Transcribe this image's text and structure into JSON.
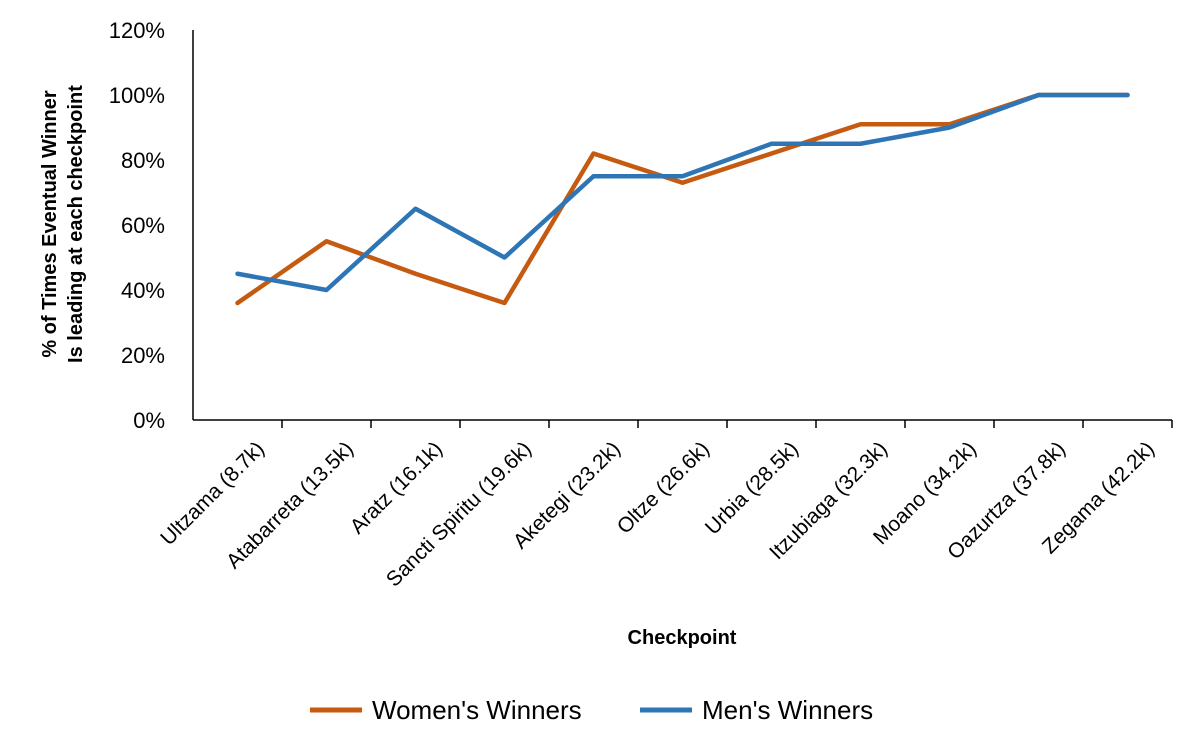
{
  "chart_data": {
    "type": "line",
    "xlabel": "Checkpoint",
    "ylabel_lines": [
      "% of Times Eventual Winner",
      "Is leading at each checkpoint"
    ],
    "categories": [
      "Ultzama (8.7k)",
      "Atabarreta (13.5k)",
      "Aratz (16.1k)",
      "Sancti Spiritu (19.6k)",
      "Aketegi (23.2k)",
      "Oltze (26.6k)",
      "Urbia (28.5k)",
      "Itzubiaga (32.3k)",
      "Moano (34.2k)",
      "Oazurtza (37.8k)",
      "Zegama (42.2k)"
    ],
    "ylim": [
      0,
      120
    ],
    "yticks": [
      "0%",
      "20%",
      "40%",
      "60%",
      "80%",
      "100%",
      "120%"
    ],
    "grid": false,
    "legend_position": "bottom",
    "series": [
      {
        "name": "Women's Winners",
        "color": "#c55a11",
        "values": [
          36,
          55,
          45,
          36,
          82,
          73,
          82,
          91,
          91,
          100,
          100
        ]
      },
      {
        "name": "Men's Winners",
        "color": "#2e75b6",
        "values": [
          45,
          40,
          65,
          50,
          75,
          75,
          85,
          85,
          90,
          100,
          100
        ]
      }
    ]
  }
}
